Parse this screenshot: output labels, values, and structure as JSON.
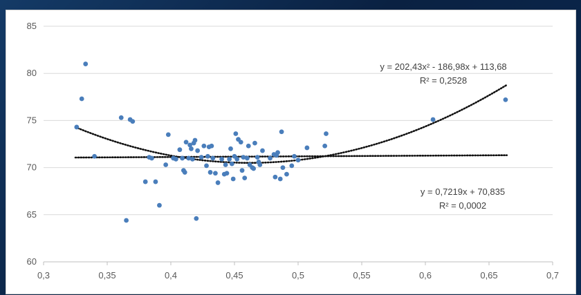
{
  "chart_data": {
    "type": "scatter",
    "title": "",
    "xlabel": "",
    "ylabel": "",
    "xlim": [
      0.3,
      0.7
    ],
    "ylim": [
      60,
      85
    ],
    "x_ticks": [
      "0,3",
      "0,35",
      "0,4",
      "0,45",
      "0,5",
      "0,55",
      "0,6",
      "0,65",
      "0,7"
    ],
    "y_ticks": [
      "60",
      "65",
      "70",
      "75",
      "80",
      "85"
    ],
    "grid": "horizontal",
    "legend": "none",
    "point_color": "#4a7ebb",
    "trendline_color": "#111111",
    "points": [
      [
        0.326,
        74.3
      ],
      [
        0.33,
        77.3
      ],
      [
        0.333,
        81.0
      ],
      [
        0.34,
        71.2
      ],
      [
        0.361,
        75.3
      ],
      [
        0.365,
        64.4
      ],
      [
        0.368,
        75.1
      ],
      [
        0.37,
        74.9
      ],
      [
        0.38,
        68.5
      ],
      [
        0.383,
        71.1
      ],
      [
        0.385,
        71.0
      ],
      [
        0.388,
        68.5
      ],
      [
        0.391,
        66.0
      ],
      [
        0.396,
        70.3
      ],
      [
        0.398,
        73.5
      ],
      [
        0.402,
        71.0
      ],
      [
        0.404,
        70.9
      ],
      [
        0.407,
        71.9
      ],
      [
        0.409,
        71.0
      ],
      [
        0.41,
        69.7
      ],
      [
        0.411,
        69.5
      ],
      [
        0.412,
        72.7
      ],
      [
        0.414,
        71.0
      ],
      [
        0.415,
        72.4
      ],
      [
        0.416,
        72.0
      ],
      [
        0.417,
        70.9
      ],
      [
        0.418,
        72.6
      ],
      [
        0.419,
        72.9
      ],
      [
        0.42,
        64.6
      ],
      [
        0.421,
        71.8
      ],
      [
        0.424,
        71.1
      ],
      [
        0.426,
        72.3
      ],
      [
        0.428,
        70.2
      ],
      [
        0.429,
        71.2
      ],
      [
        0.43,
        72.2
      ],
      [
        0.431,
        69.5
      ],
      [
        0.432,
        72.3
      ],
      [
        0.433,
        71.0
      ],
      [
        0.435,
        69.4
      ],
      [
        0.437,
        68.4
      ],
      [
        0.44,
        70.9
      ],
      [
        0.442,
        69.3
      ],
      [
        0.443,
        70.3
      ],
      [
        0.444,
        69.4
      ],
      [
        0.446,
        70.9
      ],
      [
        0.447,
        72.0
      ],
      [
        0.448,
        70.4
      ],
      [
        0.449,
        68.8
      ],
      [
        0.45,
        71.2
      ],
      [
        0.451,
        73.6
      ],
      [
        0.452,
        70.9
      ],
      [
        0.453,
        73.0
      ],
      [
        0.455,
        72.7
      ],
      [
        0.456,
        69.7
      ],
      [
        0.457,
        71.1
      ],
      [
        0.458,
        68.9
      ],
      [
        0.46,
        71.0
      ],
      [
        0.461,
        72.3
      ],
      [
        0.462,
        70.3
      ],
      [
        0.464,
        70.0
      ],
      [
        0.465,
        69.9
      ],
      [
        0.466,
        72.6
      ],
      [
        0.468,
        71.1
      ],
      [
        0.469,
        70.6
      ],
      [
        0.47,
        70.3
      ],
      [
        0.472,
        71.8
      ],
      [
        0.478,
        71.0
      ],
      [
        0.481,
        71.4
      ],
      [
        0.482,
        69.0
      ],
      [
        0.483,
        71.3
      ],
      [
        0.484,
        71.6
      ],
      [
        0.486,
        68.8
      ],
      [
        0.487,
        73.8
      ],
      [
        0.488,
        70.0
      ],
      [
        0.491,
        69.3
      ],
      [
        0.495,
        70.2
      ],
      [
        0.497,
        71.2
      ],
      [
        0.5,
        70.8
      ],
      [
        0.507,
        72.1
      ],
      [
        0.521,
        72.3
      ],
      [
        0.522,
        73.6
      ],
      [
        0.606,
        75.1
      ],
      [
        0.663,
        77.2
      ]
    ],
    "trendlines": [
      {
        "kind": "polynomial",
        "coefficients": [
          202.43,
          -186.98,
          113.68
        ],
        "x_range": [
          0.325,
          0.664
        ],
        "equation_label": "y = 202,43x² - 186,98x + 113,68",
        "r2_label": "R² = 0,2528"
      },
      {
        "kind": "linear",
        "coefficients": [
          0.7219,
          70.835
        ],
        "x_range": [
          0.325,
          0.664
        ],
        "equation_label": "y = 0,7219x + 70,835",
        "r2_label": "R² = 0,0002"
      }
    ]
  }
}
